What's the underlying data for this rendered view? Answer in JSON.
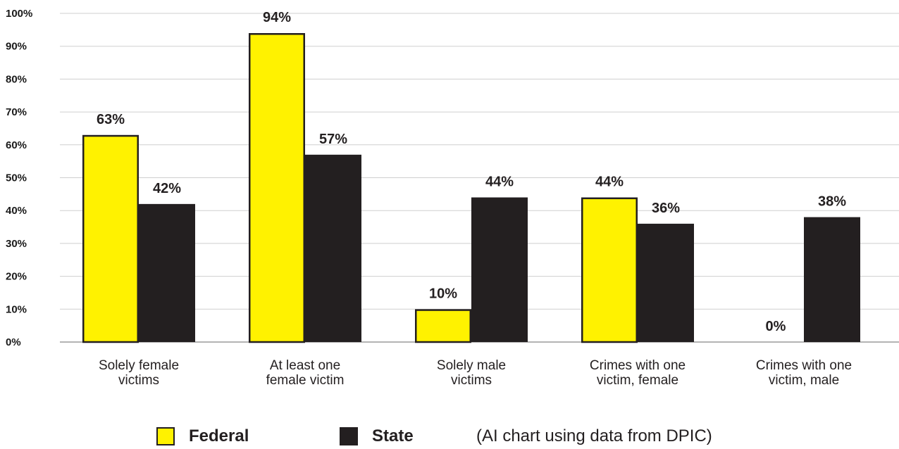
{
  "chart_data": {
    "type": "bar",
    "title": "",
    "xlabel": "",
    "ylabel": "",
    "ylim": [
      0,
      100
    ],
    "yticks": [
      "0%",
      "10%",
      "20%",
      "30%",
      "40%",
      "50%",
      "60%",
      "70%",
      "80%",
      "90%",
      "100%"
    ],
    "categories": [
      [
        "Solely female",
        "victims"
      ],
      [
        "At least one",
        "female victim"
      ],
      [
        "Solely male",
        "victims"
      ],
      [
        "Crimes with one",
        "victim, female"
      ],
      [
        "Crimes with one",
        "victim, male"
      ]
    ],
    "series": [
      {
        "name": "Federal",
        "color": "#fff200",
        "values": [
          63,
          94,
          10,
          44,
          0
        ],
        "labels": [
          "63%",
          "94%",
          "10%",
          "44%",
          "0%"
        ]
      },
      {
        "name": "State",
        "color": "#231f20",
        "values": [
          42,
          57,
          44,
          36,
          38
        ],
        "labels": [
          "42%",
          "57%",
          "44%",
          "36%",
          "38%"
        ]
      }
    ],
    "grid": true,
    "legend_position": "bottom"
  },
  "legend": {
    "note": "(AI chart using data from DPIC)"
  }
}
